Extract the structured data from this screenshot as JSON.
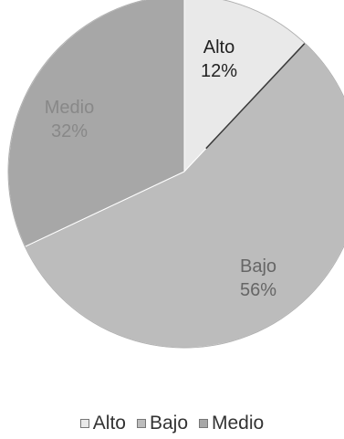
{
  "chart_data": {
    "type": "pie",
    "title": "",
    "categories": [
      "Alto",
      "Bajo",
      "Medio"
    ],
    "values": [
      12,
      56,
      32
    ],
    "value_labels": [
      "12%",
      "56%",
      "32%"
    ],
    "colors": [
      "#e9e9e9",
      "#bcbcbc",
      "#a7a7a7"
    ],
    "label_colors": [
      "#222222",
      "#666666",
      "#888888"
    ],
    "start_angle_deg": 0,
    "direction": "clockwise",
    "legend": {
      "position": "bottom",
      "entries": [
        "Alto",
        "Bajo",
        "Medio"
      ]
    }
  }
}
